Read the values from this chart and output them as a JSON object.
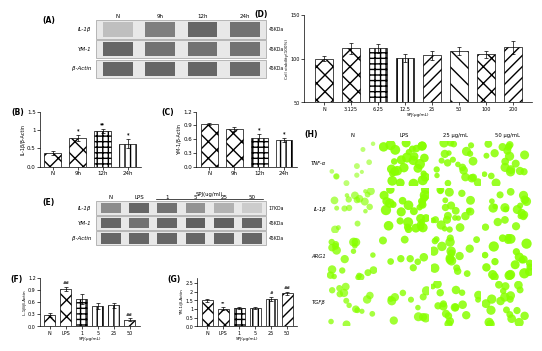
{
  "panel_B": {
    "categories": [
      "N",
      "9h",
      "12h",
      "24h"
    ],
    "values": [
      0.37,
      0.78,
      0.97,
      0.62
    ],
    "errors": [
      0.05,
      0.07,
      0.06,
      0.12
    ],
    "ylabel": "IL-1β/β-Actin",
    "ylim": [
      0.0,
      1.5
    ],
    "yticks": [
      0.0,
      0.5,
      1.0,
      1.5
    ],
    "label": "(B)",
    "sig_labels": [
      "",
      "*",
      "**",
      "*"
    ],
    "hatch_styles": [
      "xx",
      "xx",
      "+++",
      "|||"
    ]
  },
  "panel_C": {
    "categories": [
      "N",
      "9h",
      "12h",
      "24h"
    ],
    "values": [
      0.93,
      0.82,
      0.63,
      0.58
    ],
    "errors": [
      0.03,
      0.04,
      0.07,
      0.05
    ],
    "ylabel": "YM-1/β-Actin",
    "ylim": [
      0.0,
      1.2
    ],
    "yticks": [
      0.0,
      0.3,
      0.6,
      0.9,
      1.2
    ],
    "label": "(C)",
    "sig_labels": [
      "",
      "",
      "*",
      "*"
    ],
    "hatch_styles": [
      "xx",
      "xx",
      "+++",
      "|||"
    ]
  },
  "panel_D": {
    "categories": [
      "N",
      "3.125",
      "6.25",
      "12.5",
      "25",
      "50",
      "100",
      "200"
    ],
    "values": [
      100,
      112,
      112,
      101,
      104,
      109,
      105,
      113
    ],
    "errors": [
      3,
      6,
      5,
      5,
      5,
      5,
      4,
      7
    ],
    "ylabel": "Cell viability(100%)",
    "ylim": [
      50,
      150
    ],
    "yticks": [
      50,
      100,
      150
    ],
    "xlabel": "SPJ(μg/mL)",
    "label": "(D)",
    "hatch_styles": [
      "xx",
      "xx",
      "+++",
      "|||",
      "///",
      "\\\\",
      "xx",
      "///"
    ]
  },
  "panel_F": {
    "categories": [
      "N",
      "LPS",
      "1",
      "5",
      "25",
      "50"
    ],
    "values": [
      0.28,
      0.93,
      0.68,
      0.5,
      0.52,
      0.17
    ],
    "errors": [
      0.05,
      0.05,
      0.12,
      0.07,
      0.07,
      0.03
    ],
    "ylabel": "IL-1β/β-Actin",
    "ylim": [
      0.0,
      1.2
    ],
    "yticks": [
      0.0,
      0.3,
      0.6,
      0.9,
      1.2
    ],
    "xlabel": "SPJ(μg/mL)",
    "label": "(F)",
    "sig_labels": [
      "",
      "##",
      "",
      "",
      "",
      "##"
    ],
    "hatch_styles": [
      "xx",
      "xx",
      "+++",
      "|||",
      "|||",
      "///"
    ]
  },
  "panel_G": {
    "categories": [
      "N",
      "LPS",
      "1",
      "5",
      "25",
      "50"
    ],
    "values": [
      1.5,
      1.02,
      1.05,
      1.05,
      1.6,
      1.92
    ],
    "errors": [
      0.07,
      0.09,
      0.07,
      0.07,
      0.11,
      0.09
    ],
    "ylabel": "YM-1/β-Actin",
    "ylim": [
      0.0,
      2.8
    ],
    "yticks": [
      0.0,
      0.5,
      1.0,
      1.5,
      2.0,
      2.5
    ],
    "xlabel": "SPJ(μg/mL)",
    "label": "(G)",
    "sig_labels": [
      "",
      "**",
      "",
      "",
      "#",
      "##"
    ],
    "hatch_styles": [
      "xx",
      "xx",
      "+++",
      "|||",
      "|||",
      "///"
    ]
  },
  "figure_bg": "#ffffff",
  "panel_A_label": "(A)",
  "panel_E_label": "(E)",
  "panel_H_label": "(H)",
  "A_headers": [
    "N",
    "9h",
    "12h",
    "24h"
  ],
  "A_row_labels": [
    "IL-1β",
    "YM-1",
    "β-Actin"
  ],
  "A_kda": [
    "45KDa",
    "45KDa",
    "45KDa"
  ],
  "E_headers": [
    "N",
    "LPS",
    "1",
    "5",
    "25",
    "50"
  ],
  "E_row_labels": [
    "IL-1β",
    "YM-1",
    "β-Actin"
  ],
  "E_kda": [
    "17KDa",
    "45KDa",
    "45KDa"
  ],
  "E_spj_label": "SPJ(ug/ml)",
  "H_rows": [
    "TNF-α",
    "IL-1β",
    "ARG1",
    "TGFβ"
  ],
  "H_cols": [
    "N",
    "LPS",
    "25 μg/mL",
    "50 μg/mL"
  ]
}
